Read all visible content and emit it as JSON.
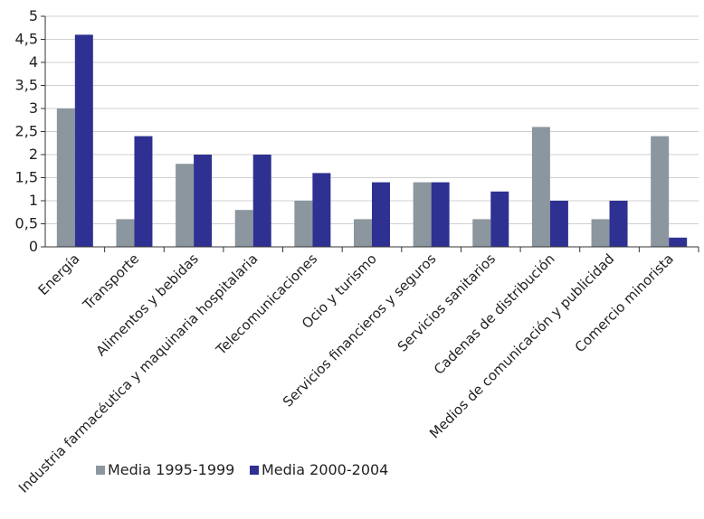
{
  "chart_data": {
    "type": "bar",
    "categories": [
      "Energía",
      "Transporte",
      "Alimentos y bebidas",
      "Industria farmacéutica y maquinaria hospitalaria",
      "Telecomunicaciones",
      "Ocio y turismo",
      "Servicios financieros y seguros",
      "Servicios sanitarios",
      "Cadenas de distribución",
      "Medios de comunicación y publicidad",
      "Comercio minorista"
    ],
    "series": [
      {
        "name": "Media 1995-1999",
        "color": "#8c969e",
        "values": [
          3.0,
          0.6,
          1.8,
          0.8,
          1.0,
          0.6,
          1.4,
          0.6,
          2.6,
          0.6,
          2.4
        ]
      },
      {
        "name": "Media 2000-2004",
        "color": "#2e3192",
        "values": [
          4.6,
          2.4,
          2.0,
          2.0,
          1.6,
          1.4,
          1.4,
          1.2,
          1.0,
          1.0,
          0.2
        ]
      }
    ],
    "ylim": [
      0,
      5
    ],
    "yticks": [
      "0",
      "0,5",
      "1",
      "1,5",
      "2",
      "2,5",
      "3",
      "3,5",
      "4",
      "4,5",
      "5"
    ],
    "title": "",
    "xlabel": "",
    "ylabel": "",
    "grid": true,
    "legend_position": "bottom-center"
  }
}
